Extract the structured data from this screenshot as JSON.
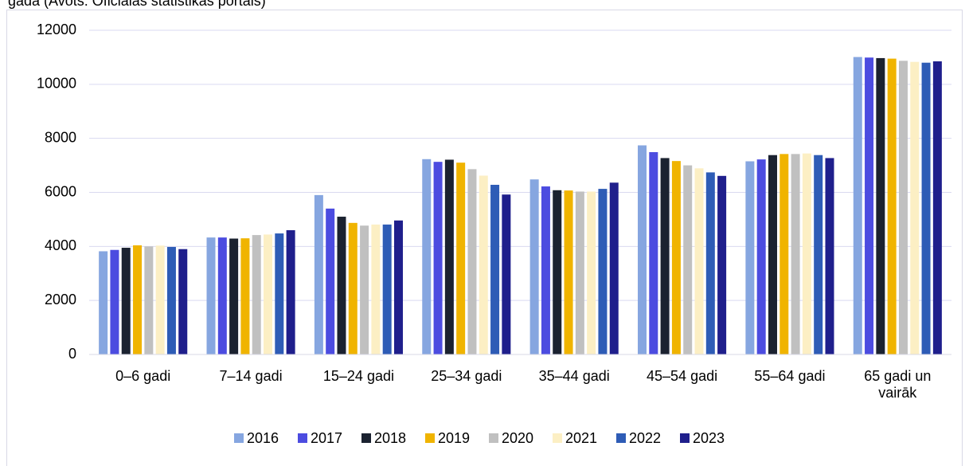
{
  "chart_data": {
    "type": "bar",
    "title": "gadā (Avots: Oficiālās statistikas portāls)",
    "categories": [
      "0–6 gadi",
      "7–14 gadi",
      "15–24 gadi",
      "25–34 gadi",
      "35–44 gadi",
      "45–54 gadi",
      "55–64 gadi",
      "65 gadi un vairāk"
    ],
    "series": [
      {
        "name": "2016",
        "color": "#86a6e0",
        "values": [
          3820,
          4330,
          5900,
          7230,
          6480,
          7740,
          7150,
          11010
        ]
      },
      {
        "name": "2017",
        "color": "#4c4ce0",
        "values": [
          3870,
          4330,
          5400,
          7130,
          6220,
          7490,
          7220,
          10990
        ]
      },
      {
        "name": "2018",
        "color": "#1b2230",
        "values": [
          3950,
          4290,
          5100,
          7210,
          6080,
          7270,
          7380,
          10970
        ]
      },
      {
        "name": "2019",
        "color": "#f0b400",
        "values": [
          4040,
          4300,
          4870,
          7100,
          6070,
          7160,
          7420,
          10950
        ]
      },
      {
        "name": "2020",
        "color": "#c0c0c0",
        "values": [
          4000,
          4420,
          4770,
          6860,
          6030,
          7000,
          7420,
          10870
        ]
      },
      {
        "name": "2021",
        "color": "#fcefc4",
        "values": [
          4030,
          4440,
          4810,
          6620,
          6030,
          6890,
          7440,
          10830
        ]
      },
      {
        "name": "2022",
        "color": "#2e5cb6",
        "values": [
          3980,
          4480,
          4810,
          6280,
          6130,
          6740,
          7380,
          10800
        ]
      },
      {
        "name": "2023",
        "color": "#1f1f8c",
        "values": [
          3900,
          4600,
          4960,
          5920,
          6360,
          6610,
          7270,
          10850
        ]
      }
    ],
    "ylim": [
      0,
      12000
    ],
    "yticks": [
      0,
      2000,
      4000,
      6000,
      8000,
      10000,
      12000
    ],
    "grid": true,
    "legend": "bottom"
  }
}
